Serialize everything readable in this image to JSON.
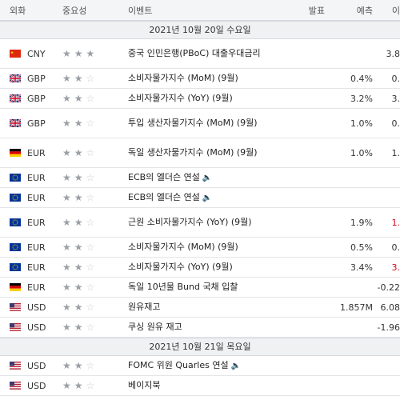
{
  "header": {
    "currency": "외화",
    "importance": "중요성",
    "event": "이벤트",
    "actual": "발표",
    "forecast": "예측",
    "previous": "이"
  },
  "sections": [
    {
      "date": "2021년 10월 20일 수요일",
      "rows": [
        {
          "flag": "cn",
          "currency": "CNY",
          "stars": 3,
          "event": "중국 인민은행(PBoC) 대출우대금리",
          "actual": "",
          "forecast": "",
          "previous": "3.8",
          "tall": true,
          "speech": false,
          "red": false
        },
        {
          "flag": "gb",
          "currency": "GBP",
          "stars": 2,
          "event": "소비자물가지수 (MoM) (9월)",
          "actual": "",
          "forecast": "0.4%",
          "previous": "0.",
          "tall": false,
          "speech": false,
          "red": false
        },
        {
          "flag": "gb",
          "currency": "GBP",
          "stars": 2,
          "event": "소비자물가지수 (YoY) (9월)",
          "actual": "",
          "forecast": "3.2%",
          "previous": "3.",
          "tall": false,
          "speech": false,
          "red": false
        },
        {
          "flag": "gb",
          "currency": "GBP",
          "stars": 2,
          "event": "투입 생산자물가지수 (MoM) (9월)",
          "actual": "",
          "forecast": "1.0%",
          "previous": "0.",
          "tall": true,
          "speech": false,
          "red": false
        },
        {
          "flag": "de",
          "currency": "EUR",
          "stars": 2,
          "event": "독일 생산자물가지수 (MoM) (9월)",
          "actual": "",
          "forecast": "1.0%",
          "previous": "1.",
          "tall": true,
          "speech": false,
          "red": false
        },
        {
          "flag": "eu",
          "currency": "EUR",
          "stars": 2,
          "event": "ECB의 엘더슨 연설",
          "actual": "",
          "forecast": "",
          "previous": "",
          "tall": false,
          "speech": true,
          "red": false
        },
        {
          "flag": "eu",
          "currency": "EUR",
          "stars": 2,
          "event": "ECB의 엘더슨 연설",
          "actual": "",
          "forecast": "",
          "previous": "",
          "tall": false,
          "speech": true,
          "red": false
        },
        {
          "flag": "eu",
          "currency": "EUR",
          "stars": 2,
          "event": "근원 소비자물가지수 (YoY) (9월)",
          "actual": "",
          "forecast": "1.9%",
          "previous": "1.",
          "tall": true,
          "speech": false,
          "red": true
        },
        {
          "flag": "eu",
          "currency": "EUR",
          "stars": 2,
          "event": "소비자물가지수 (MoM) (9월)",
          "actual": "",
          "forecast": "0.5%",
          "previous": "0.",
          "tall": false,
          "speech": false,
          "red": false
        },
        {
          "flag": "eu",
          "currency": "EUR",
          "stars": 2,
          "event": "소비자물가지수 (YoY) (9월)",
          "actual": "",
          "forecast": "3.4%",
          "previous": "3.",
          "tall": false,
          "speech": false,
          "red": true
        },
        {
          "flag": "de",
          "currency": "EUR",
          "stars": 2,
          "event": "독일 10년물 Bund 국채 입찰",
          "actual": "",
          "forecast": "",
          "previous": "-0.22",
          "tall": false,
          "speech": false,
          "red": false
        },
        {
          "flag": "us",
          "currency": "USD",
          "stars": 2,
          "event": "원유재고",
          "actual": "",
          "forecast": "1.857M",
          "previous": "6.08",
          "tall": false,
          "speech": false,
          "red": false
        },
        {
          "flag": "us",
          "currency": "USD",
          "stars": 2,
          "event": "쿠싱 원유 재고",
          "actual": "",
          "forecast": "",
          "previous": "-1.96",
          "tall": false,
          "speech": false,
          "red": false
        }
      ]
    },
    {
      "date": "2021년 10월 21일 목요일",
      "rows": [
        {
          "flag": "us",
          "currency": "USD",
          "stars": 2,
          "event": "FOMC 위원 Quarles 연설",
          "actual": "",
          "forecast": "",
          "previous": "",
          "tall": false,
          "speech": true,
          "red": false
        },
        {
          "flag": "us",
          "currency": "USD",
          "stars": 2,
          "event": "베이지북",
          "actual": "",
          "forecast": "",
          "previous": "",
          "tall": false,
          "speech": false,
          "red": false
        }
      ]
    }
  ]
}
